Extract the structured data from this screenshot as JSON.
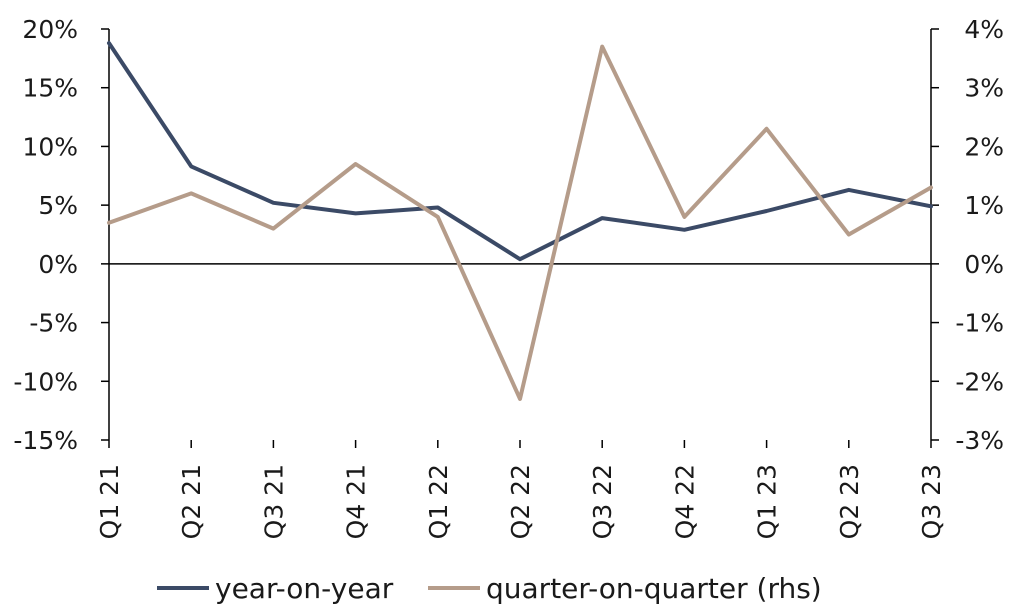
{
  "chart_data": {
    "type": "line",
    "categories": [
      "Q1 21",
      "Q2 21",
      "Q3 21",
      "Q4 21",
      "Q1 22",
      "Q2 22",
      "Q3 22",
      "Q4 22",
      "Q1 23",
      "Q2 23",
      "Q3 23"
    ],
    "series": [
      {
        "name": "year-on-year",
        "axis": "left",
        "color": "#3b4a66",
        "values": [
          18.8,
          8.3,
          5.2,
          4.3,
          4.8,
          0.4,
          3.9,
          2.9,
          4.5,
          6.3,
          4.9
        ]
      },
      {
        "name": "quarter-on-quarter (rhs)",
        "axis": "right",
        "color": "#b59c8a",
        "values": [
          0.7,
          1.2,
          0.6,
          1.7,
          0.8,
          -2.3,
          3.7,
          0.8,
          2.3,
          0.5,
          1.3
        ]
      }
    ],
    "y_left": {
      "ylim": [
        -15,
        20
      ],
      "ticks": [
        20,
        15,
        10,
        5,
        0,
        -5,
        -10,
        -15
      ],
      "tick_labels": [
        "20%",
        "15%",
        "10%",
        "5%",
        "0%",
        "-5%",
        "-10%",
        "-15%"
      ]
    },
    "y_right": {
      "ylim": [
        -3,
        4
      ],
      "ticks": [
        4,
        3,
        2,
        1,
        0,
        -1,
        -2,
        -3
      ],
      "tick_labels": [
        "4%",
        "3%",
        "2%",
        "1%",
        "0%",
        "-1%",
        "-2%",
        "-3%"
      ]
    },
    "title": "",
    "xlabel": "",
    "ylabel": "",
    "grid": false,
    "legend": "bottom"
  }
}
